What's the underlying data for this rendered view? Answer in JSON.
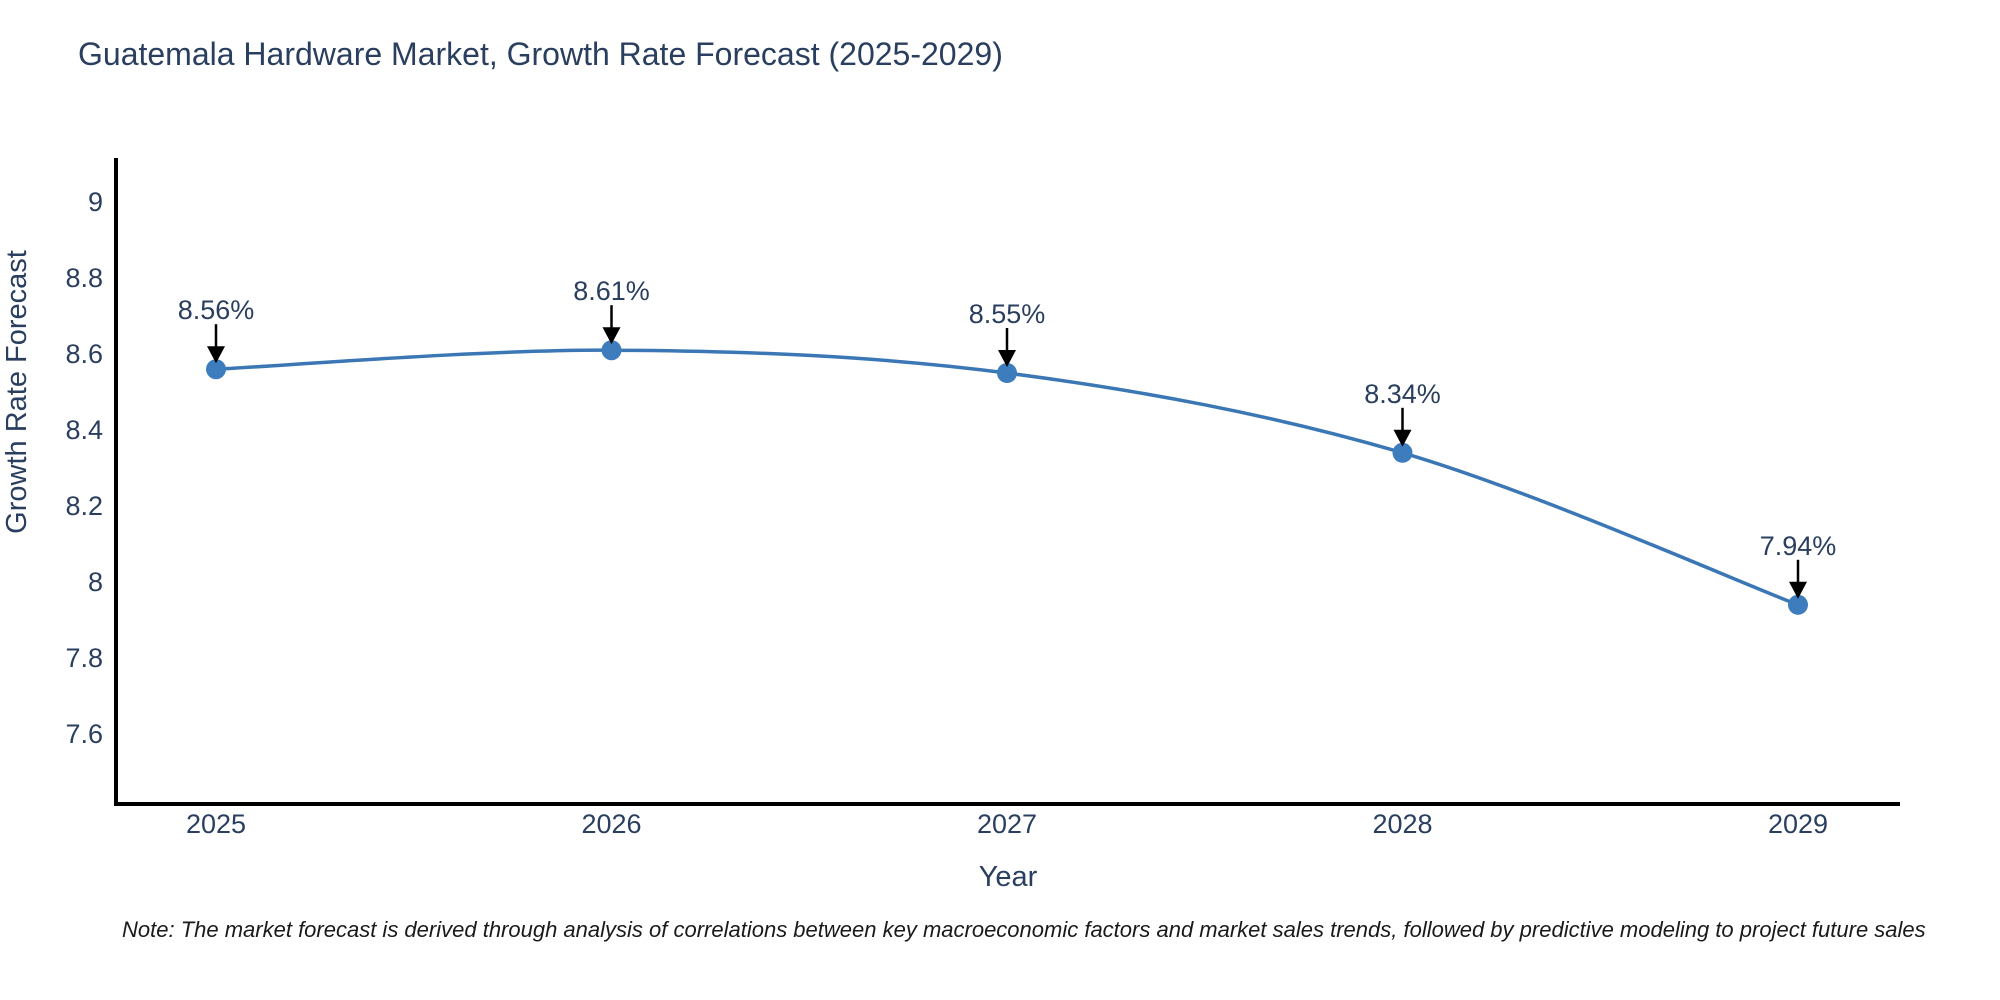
{
  "page": {
    "background": "#ffffff"
  },
  "title": {
    "text": "Guatemala Hardware Market, Growth Rate Forecast (2025-2029)",
    "color": "#2a3f5f"
  },
  "note": {
    "text": "Note: The market forecast is derived through analysis of correlations between key macroeconomic factors and market sales trends, followed by predictive modeling to project future sales",
    "color": "#1a1a1a"
  },
  "chart_data": {
    "type": "line",
    "line_shape": "spline",
    "title": "Guatemala Hardware Market, Growth Rate Forecast (2025-2029)",
    "x": [
      2025,
      2026,
      2027,
      2028,
      2029
    ],
    "y": [
      8.56,
      8.61,
      8.55,
      8.34,
      7.94
    ],
    "point_labels": [
      "8.56%",
      "8.61%",
      "8.55%",
      "8.34%",
      "7.94%"
    ],
    "xlabel": "Year",
    "ylabel": "Growth Rate Forecast",
    "xtick_labels": [
      "2025",
      "2026",
      "2027",
      "2028",
      "2029"
    ],
    "ytick_values": [
      9,
      8.8,
      8.6,
      8.4,
      8.2,
      8,
      7.8,
      7.6
    ],
    "ytick_labels": [
      "9",
      "8.8",
      "8.6",
      "8.4",
      "8.2",
      "8",
      "7.8",
      "7.6"
    ],
    "xlim": [
      2024.73,
      2029.26
    ],
    "ylim": [
      7.41,
      9.12
    ],
    "grid": false,
    "legend": false,
    "line_color": "#3b77b5",
    "marker_color": "#3e7dbd",
    "annotation_arrow_color": "#000000",
    "text_color": "#2a3f5f",
    "axis_line_color": "#000000"
  }
}
